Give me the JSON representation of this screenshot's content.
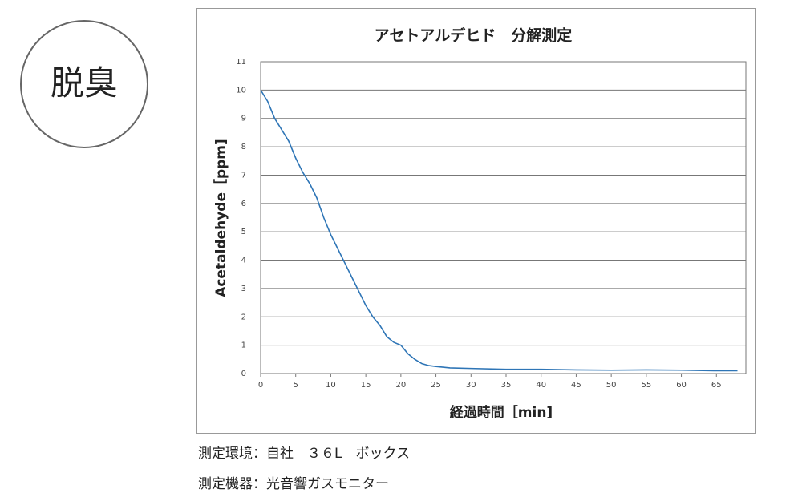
{
  "badge": "脱臭",
  "chart_data": {
    "type": "line",
    "title": "アセトアルデヒド　分解測定",
    "xlabel": "経過時間［min]",
    "ylabel": "Acetaldehyde［ppm]",
    "x": [
      0,
      1,
      2,
      3,
      4,
      5,
      6,
      7,
      8,
      9,
      10,
      11,
      12,
      13,
      14,
      15,
      16,
      17,
      18,
      19,
      20,
      21,
      22,
      23,
      24,
      25,
      27,
      30,
      35,
      40,
      45,
      50,
      55,
      60,
      65,
      68
    ],
    "values": [
      10,
      9.6,
      9.0,
      8.6,
      8.2,
      7.6,
      7.1,
      6.7,
      6.2,
      5.5,
      4.9,
      4.4,
      3.9,
      3.4,
      2.9,
      2.4,
      2.0,
      1.7,
      1.3,
      1.1,
      1.0,
      0.7,
      0.5,
      0.35,
      0.28,
      0.25,
      0.2,
      0.18,
      0.15,
      0.15,
      0.13,
      0.12,
      0.13,
      0.12,
      0.1,
      0.1
    ],
    "color": "#2e75b6",
    "xlim": [
      0,
      69.2
    ],
    "ylim": [
      0,
      11
    ],
    "xticks": [
      0,
      5,
      10,
      15,
      20,
      25,
      30,
      35,
      40,
      45,
      50,
      55,
      60,
      65
    ],
    "yticks": [
      0,
      1,
      2,
      3,
      4,
      5,
      6,
      7,
      8,
      9,
      10,
      11
    ],
    "grid": true
  },
  "notes": [
    "測定環境：自社　３６L　ボックス",
    "測定機器：光音響ガスモニター"
  ]
}
